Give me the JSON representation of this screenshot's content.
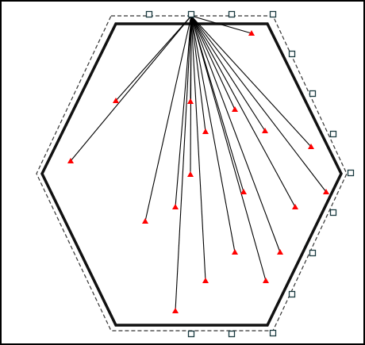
{
  "colors": {
    "canvas_border": "#000000",
    "hexagon_stroke": "#111111",
    "selection_dash": "#333333",
    "handle_stroke": "#1a3a40",
    "handle_fill": "#ffffff",
    "connector": "#000000",
    "marker": "#ff0000"
  },
  "icons": {
    "handle": "square-handle-icon",
    "marker": "red-triangle-marker-icon"
  },
  "diagram": {
    "shape": "hexagon",
    "selected": true,
    "hub": "apex-anchor",
    "connector_count": 17,
    "marker_count": 17,
    "handle_count": 16
  }
}
